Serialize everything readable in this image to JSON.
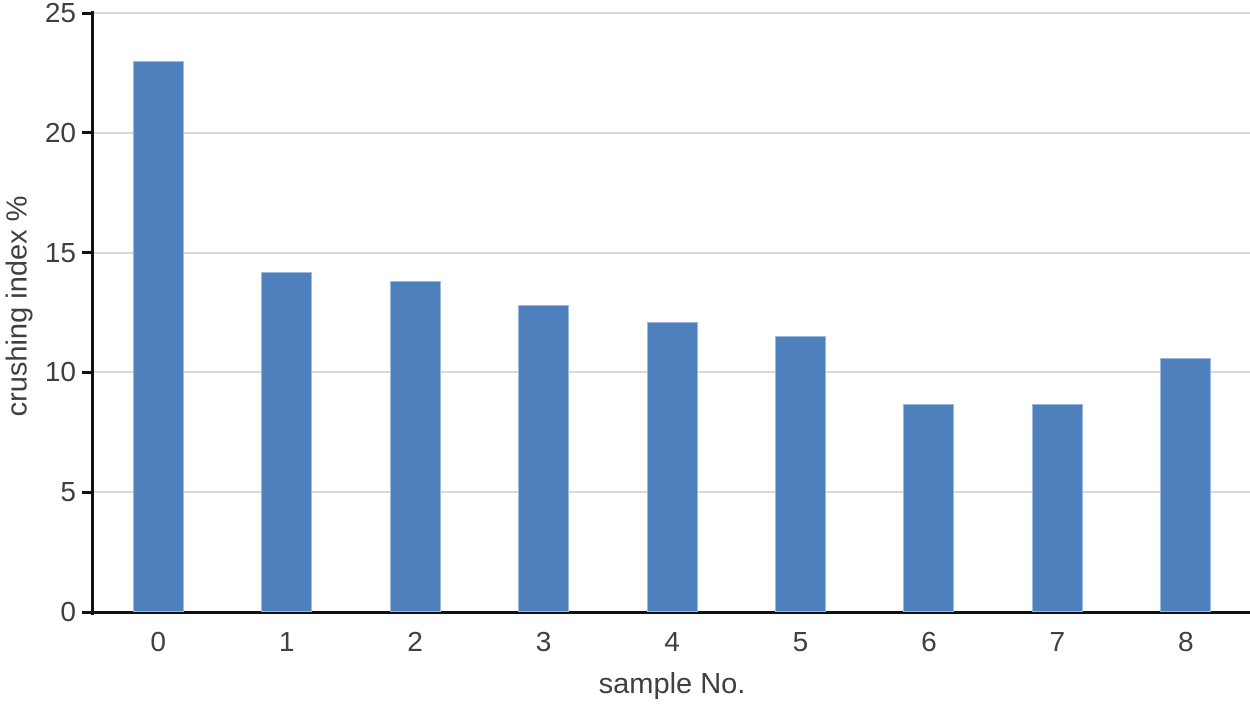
{
  "chart_data": {
    "type": "bar",
    "title": "",
    "categories": [
      "0",
      "1",
      "2",
      "3",
      "4",
      "5",
      "6",
      "7",
      "8"
    ],
    "values": [
      23,
      14.2,
      13.8,
      12.8,
      12.1,
      11.5,
      8.7,
      8.7,
      10.6
    ],
    "xlabel": "sample No.",
    "ylabel": "crushing index %",
    "ylim": [
      0,
      25
    ],
    "yticks": [
      0,
      5,
      10,
      15,
      20,
      25
    ],
    "grid": "horizontal-on",
    "legend": "none",
    "bar_color": "#4e80bd",
    "bar_edge_color": "#9db8db",
    "gridline_color": "#d9d9d9",
    "axis_color": "#111111",
    "text_color": "#404040"
  }
}
